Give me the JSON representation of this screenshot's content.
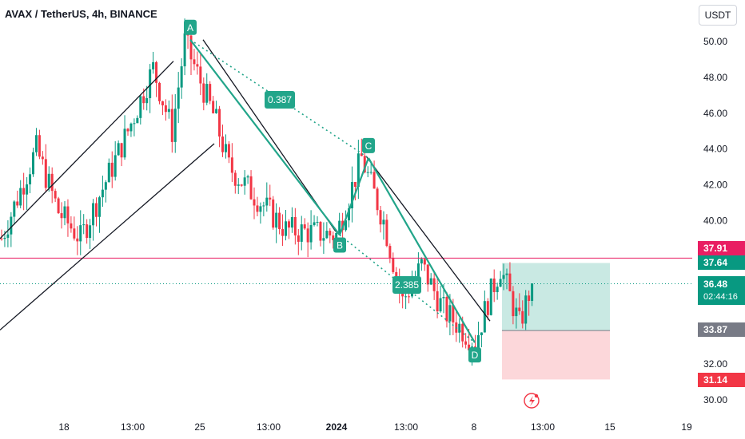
{
  "header": {
    "title": "AVAX / TetherUS, 4h, BINANCE",
    "currency_button": "USDT"
  },
  "colors": {
    "up": "#089981",
    "down": "#f23645",
    "pattern": "#22a58a",
    "trendline": "#131722",
    "level_line": "#e91e63",
    "profit_zone": "rgba(8,153,129,0.2)",
    "loss_zone": "rgba(242,54,69,0.2)"
  },
  "chart_data": {
    "type": "candlestick",
    "symbol": "AVAX / TetherUS",
    "interval": "4h",
    "exchange": "BINANCE",
    "ylim": [
      29.4,
      53.2
    ],
    "y_ticks": [
      "50.00",
      "48.00",
      "46.00",
      "44.00",
      "42.00",
      "40.00",
      "32.00",
      "30.00"
    ],
    "x_ticks": [
      "18",
      "13:00",
      "25",
      "13:00",
      "2024",
      "13:00",
      "8",
      "13:00",
      "15",
      "19"
    ],
    "price_labels": {
      "level_line": "37.91",
      "target": "37.64",
      "current_price": "36.48",
      "countdown": "02:44:16",
      "entry": "33.87",
      "stop": "31.14"
    },
    "harmonic_pattern": {
      "points": [
        {
          "label": "A",
          "price": 50.1
        },
        {
          "label": "B",
          "price": 39.2
        },
        {
          "label": "C",
          "price": 43.5
        },
        {
          "label": "D",
          "price": 33.2
        }
      ],
      "ratios": [
        "0.387",
        "2.385"
      ]
    },
    "close_path": [
      {
        "bar": 0,
        "price": 39.0
      },
      {
        "bar": 11,
        "price": 44.0
      },
      {
        "bar": 18,
        "price": 40.5
      },
      {
        "bar": 25,
        "price": 39.0
      },
      {
        "bar": 40,
        "price": 45.0
      },
      {
        "bar": 48,
        "price": 48.5
      },
      {
        "bar": 54,
        "price": 45.0
      },
      {
        "bar": 58,
        "price": 50.0
      },
      {
        "bar": 68,
        "price": 45.5
      },
      {
        "bar": 72,
        "price": 43.0
      },
      {
        "bar": 90,
        "price": 39.5
      },
      {
        "bar": 106,
        "price": 39.2
      },
      {
        "bar": 114,
        "price": 43.5
      },
      {
        "bar": 121,
        "price": 40.0
      },
      {
        "bar": 127,
        "price": 35.5
      },
      {
        "bar": 133,
        "price": 37.5
      },
      {
        "bar": 140,
        "price": 35.0
      },
      {
        "bar": 150,
        "price": 33.2
      },
      {
        "bar": 154,
        "price": 35.5
      },
      {
        "bar": 158,
        "price": 37.4
      },
      {
        "bar": 164,
        "price": 34.2
      },
      {
        "bar": 168,
        "price": 36.5
      }
    ]
  }
}
